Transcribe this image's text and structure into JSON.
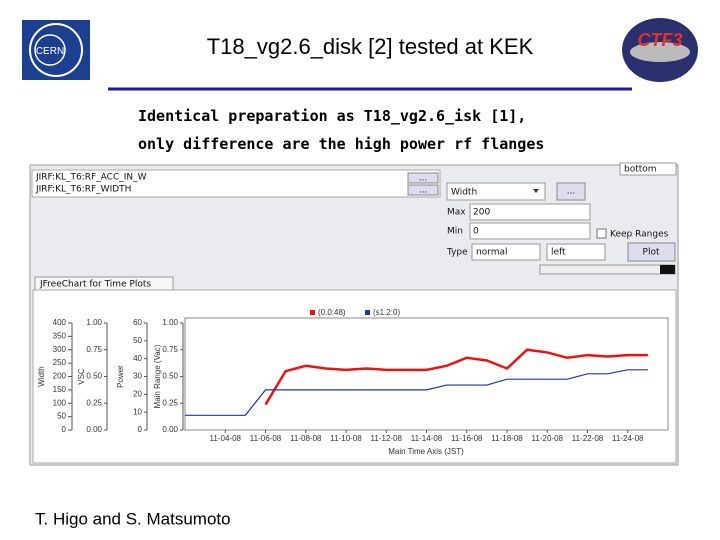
{
  "header": {
    "title": "T18_vg2.6_disk [2] tested at KEK",
    "subtitle_lines": [
      "Identical preparation as T18_vg2.6_isk [1],",
      "only difference are the high power rf flanges"
    ]
  },
  "footer": {
    "author": "T. Higo and S. Matsumoto"
  },
  "app": {
    "channels": [
      "JIRF:KL_T6:RF_ACC_IN_W",
      "JIRF:KL_T6:RF_WIDTH"
    ],
    "browse_button": "...",
    "position_select": "bottom",
    "signal_select": "Width",
    "max_label": "Max",
    "max_value": "200",
    "min_label": "Min",
    "min_value": "0",
    "keep_ranges": "Keep Ranges",
    "type_label": "Type",
    "type_select": "normal",
    "side_select": "left",
    "plot_button": "Plot",
    "tab": "JFreeChart for Time Plots"
  },
  "chart_data": {
    "type": "line",
    "x": [
      "11-02-08",
      "11-03-08",
      "11-04-08",
      "11-05-08",
      "11-06-08",
      "11-07-08",
      "11-08-08",
      "11-09-08",
      "11-10-08",
      "11-11-08",
      "11-12-08",
      "11-13-08",
      "11-14-08",
      "11-15-08",
      "11-16-08",
      "11-17-08",
      "11-18-08",
      "11-19-08",
      "11-20-08",
      "11-21-08",
      "11-22-08",
      "11-23-08",
      "11-24-08",
      "11-25-08"
    ],
    "series": [
      {
        "name": "(0.0:48)",
        "color": "#ee1111",
        "values": [
          null,
          null,
          null,
          null,
          95,
          220,
          240,
          230,
          225,
          230,
          225,
          225,
          225,
          240,
          270,
          260,
          230,
          300,
          290,
          270,
          280,
          275,
          280,
          280
        ]
      },
      {
        "name": "(s1.2:0)",
        "color": "#2233aa",
        "values": [
          55,
          55,
          55,
          55,
          150,
          150,
          150,
          150,
          150,
          150,
          150,
          150,
          150,
          168,
          168,
          168,
          190,
          190,
          190,
          190,
          210,
          210,
          225,
          225
        ]
      }
    ],
    "xlim": [
      "11-02-08",
      "11-26-08"
    ],
    "xticks": [
      "11-04-08",
      "11-06-08",
      "11-08-08",
      "11-10-08",
      "11-12-08",
      "11-14-08",
      "11-16-08",
      "11-18-08",
      "11-20-08",
      "11-22-08",
      "11-24-08"
    ],
    "xlabel": "Main Time Axis (JST)",
    "ylabel": "Width",
    "ylim": [
      0,
      400
    ],
    "yticks": [
      0,
      50,
      100,
      150,
      200,
      250,
      300,
      350,
      400
    ],
    "extra_axes": [
      {
        "label": "VSC",
        "lim": [
          0,
          1
        ],
        "ticks": [
          {
            "value": 0,
            "label": "0.00"
          },
          {
            "value": 0.25,
            "label": "0.25"
          },
          {
            "value": 0.5,
            "label": "0.50"
          },
          {
            "value": 0.75,
            "label": "0.75"
          },
          {
            "value": 1,
            "label": "1.00"
          }
        ]
      },
      {
        "label": "Power",
        "lim": [
          0,
          60
        ],
        "ticks": [
          0,
          10,
          20,
          30,
          40,
          50,
          60
        ]
      },
      {
        "label": "Main Range (Vac)",
        "lim": [
          0,
          1
        ],
        "ticks": [
          {
            "value": 0,
            "label": "0.00"
          },
          {
            "value": 0.25,
            "label": "0.25"
          },
          {
            "value": 0.5,
            "label": "0.50"
          },
          {
            "value": 0.75,
            "label": "0.75"
          },
          {
            "value": 1,
            "label": "1.00"
          }
        ]
      }
    ]
  }
}
